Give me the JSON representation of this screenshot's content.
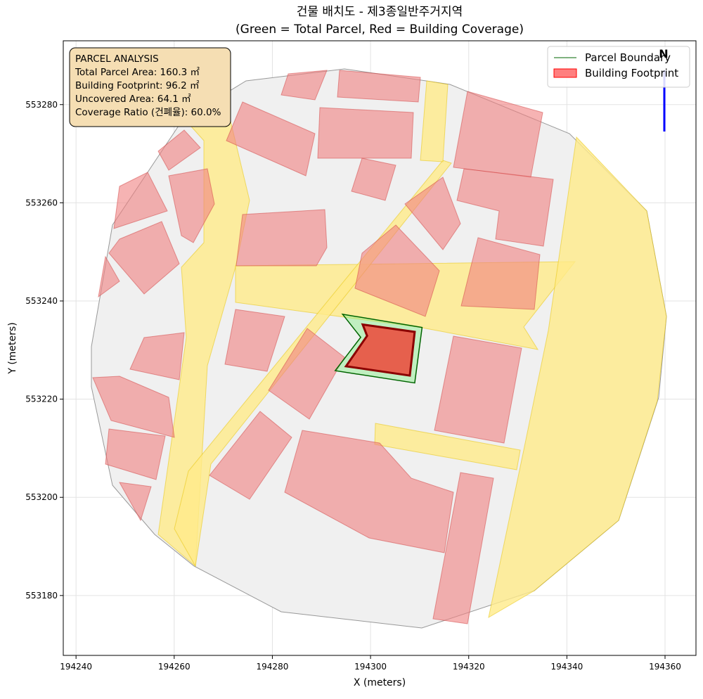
{
  "chart_data": {
    "type": "map",
    "title": "건물 배치도 - 제3종일반주거지역",
    "subtitle": "(Green = Total Parcel, Red = Building Coverage)",
    "x_label": "X (meters)",
    "y_label": "Y (meters)",
    "xlim": [
      194237.4,
      194366.3
    ],
    "ylim": [
      553167.8,
      553293.0
    ],
    "xticks": [
      194240,
      194260,
      194280,
      194300,
      194320,
      194340,
      194360
    ],
    "yticks": [
      553180,
      553200,
      553220,
      553240,
      553260,
      553280
    ],
    "grid": true,
    "legend": "upper right",
    "series": [
      {
        "name": "Parcel Boundary",
        "color": "#006400",
        "fill": "#90ee90",
        "x": [
          194294.3,
          194310.5,
          194309.0,
          194292.8,
          194298.0
        ],
        "y": [
          553237.3,
          553234.6,
          553223.3,
          553225.8,
          553232.6
        ]
      },
      {
        "name": "Building Footprint",
        "color": "#8b0000",
        "fill": "#ff0000",
        "x": [
          194298.4,
          194309.0,
          194308.0,
          194295.0,
          194299.3
        ],
        "y": [
          553235.2,
          553233.7,
          553224.8,
          553226.7,
          553232.9
        ]
      }
    ],
    "annotation": [
      "PARCEL ANALYSIS",
      "Total Parcel Area: 160.3 ㎡",
      "Building Footprint: 96.2 ㎡",
      "Uncovered Area: 64.1 ㎡",
      "Coverage Ratio (건폐율): 60.0%"
    ],
    "north_label": "N"
  }
}
